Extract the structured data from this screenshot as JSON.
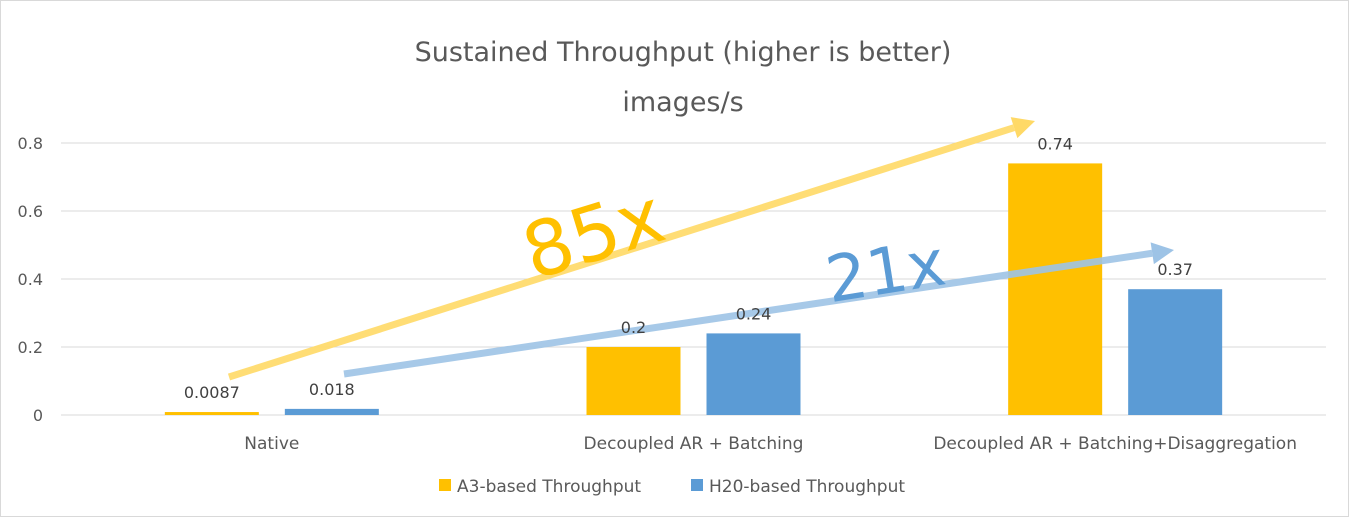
{
  "chart_data": {
    "type": "bar",
    "title": "Sustained Throughput (higher is better)",
    "subtitle": "images/s",
    "categories": [
      "Native",
      "Decoupled AR + Batching",
      "Decoupled AR + Batching+Disaggregation"
    ],
    "series": [
      {
        "name": "A3-based Throughput",
        "values": [
          0.0087,
          0.2,
          0.74
        ],
        "labels": [
          "0.0087",
          "0.2",
          "0.74"
        ],
        "color": "#FFC000"
      },
      {
        "name": "H20-based Throughput",
        "values": [
          0.018,
          0.24,
          0.37
        ],
        "labels": [
          "0.018",
          "0.24",
          "0.37"
        ],
        "color": "#5B9BD5"
      }
    ],
    "ylim": [
      0,
      0.8
    ],
    "yticks": [
      "0",
      "0.2",
      "0.4",
      "0.6",
      "0.8"
    ],
    "grid": true,
    "legend_position": "bottom",
    "annotations": [
      {
        "text": "85x",
        "color": "#FFC000",
        "arrow_color": "#FFD966"
      },
      {
        "text": "21x",
        "color": "#5B9BD5",
        "arrow_color": "#9DC3E6"
      }
    ]
  }
}
